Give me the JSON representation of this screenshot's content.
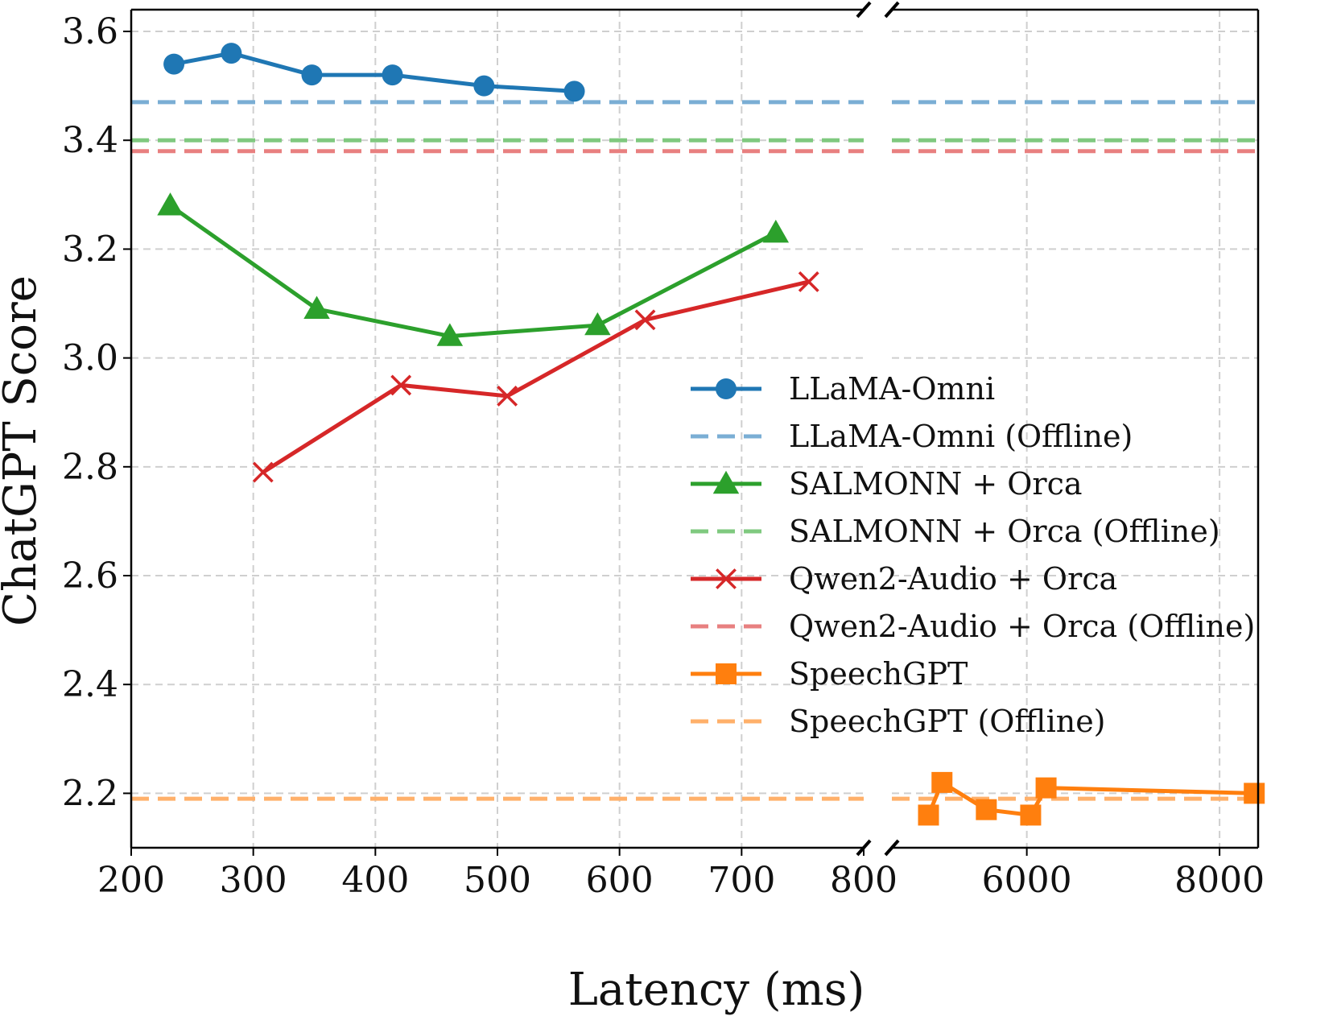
{
  "chart_data": {
    "type": "line",
    "xlabel": "Latency (ms)",
    "ylabel": "ChatGPT Score",
    "ylim": [
      2.1,
      3.64
    ],
    "yticks": [
      "2.2",
      "2.4",
      "2.6",
      "2.8",
      "3.0",
      "3.2",
      "3.4",
      "3.6"
    ],
    "axis_break": true,
    "left_panel": {
      "xlim": [
        200,
        800
      ],
      "xticks": [
        "200",
        "300",
        "400",
        "500",
        "600",
        "700",
        "800"
      ]
    },
    "right_panel": {
      "xlim": [
        4600,
        8400
      ],
      "xticks": [
        "6000",
        "8000"
      ]
    },
    "grid": true,
    "legend_position": "center-right",
    "series": [
      {
        "name": "LLaMA-Omni",
        "color": "#1f77b4",
        "marker": "circle",
        "x": [
          235,
          282,
          348,
          414,
          489,
          563
        ],
        "y": [
          3.54,
          3.56,
          3.52,
          3.52,
          3.5,
          3.49
        ]
      },
      {
        "name": "LLaMA-Omni (Offline)",
        "color": "#7aaed4",
        "style": "dashed",
        "value": 3.47
      },
      {
        "name": "SALMONN + Orca",
        "color": "#2ca02c",
        "marker": "triangle",
        "x": [
          232,
          352,
          461,
          582,
          728
        ],
        "y": [
          3.28,
          3.09,
          3.04,
          3.06,
          3.23
        ]
      },
      {
        "name": "SALMONN + Orca (Offline)",
        "color": "#7fc97f",
        "style": "dashed",
        "value": 3.4
      },
      {
        "name": "Qwen2-Audio + Orca",
        "color": "#d62728",
        "marker": "x",
        "x": [
          308,
          421,
          508,
          621,
          755
        ],
        "y": [
          2.79,
          2.95,
          2.93,
          3.07,
          3.14
        ]
      },
      {
        "name": "Qwen2-Audio + Orca (Offline)",
        "color": "#e88080",
        "style": "dashed",
        "value": 3.38
      },
      {
        "name": "SpeechGPT",
        "color": "#ff7f0e",
        "marker": "square",
        "x": [
          4980,
          5120,
          5580,
          6040,
          6200,
          8360
        ],
        "y": [
          2.16,
          2.22,
          2.17,
          2.16,
          2.21,
          2.2
        ]
      },
      {
        "name": "SpeechGPT (Offline)",
        "color": "#ffb06a",
        "style": "dashed",
        "value": 2.19
      }
    ]
  }
}
